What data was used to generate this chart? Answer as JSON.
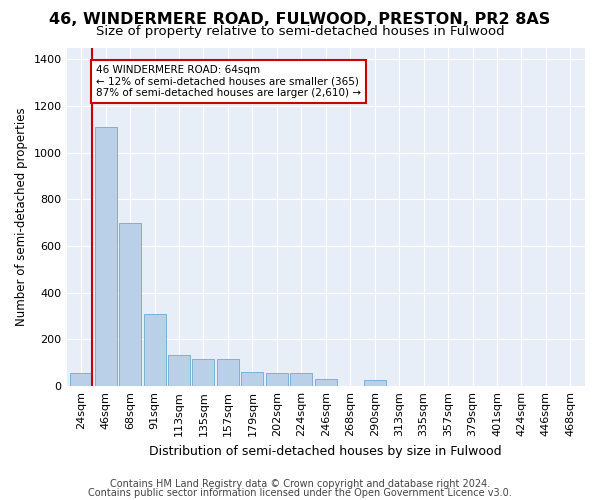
{
  "title_line1": "46, WINDERMERE ROAD, FULWOOD, PRESTON, PR2 8AS",
  "title_line2": "Size of property relative to semi-detached houses in Fulwood",
  "xlabel": "Distribution of semi-detached houses by size in Fulwood",
  "ylabel": "Number of semi-detached properties",
  "footnote1": "Contains HM Land Registry data © Crown copyright and database right 2024.",
  "footnote2": "Contains public sector information licensed under the Open Government Licence v3.0.",
  "bar_labels": [
    "24sqm",
    "46sqm",
    "68sqm",
    "91sqm",
    "113sqm",
    "135sqm",
    "157sqm",
    "179sqm",
    "202sqm",
    "224sqm",
    "246sqm",
    "268sqm",
    "290sqm",
    "313sqm",
    "335sqm",
    "357sqm",
    "379sqm",
    "401sqm",
    "424sqm",
    "446sqm",
    "468sqm"
  ],
  "bar_values": [
    58,
    1110,
    700,
    310,
    135,
    115,
    115,
    60,
    55,
    55,
    30,
    0,
    25,
    0,
    0,
    0,
    0,
    0,
    0,
    0,
    0
  ],
  "bar_color": "#bad0e8",
  "bar_edge_color": "#6aaad4",
  "vline_color": "#cc0000",
  "annotation_text": "46 WINDERMERE ROAD: 64sqm\n← 12% of semi-detached houses are smaller (365)\n87% of semi-detached houses are larger (2,610) →",
  "annotation_box_color": "#cc0000",
  "ylim": [
    0,
    1450
  ],
  "yticks": [
    0,
    200,
    400,
    600,
    800,
    1000,
    1200,
    1400
  ],
  "plot_bg_color": "#e8eef7",
  "title1_fontsize": 11.5,
  "title2_fontsize": 9.5,
  "xlabel_fontsize": 9,
  "ylabel_fontsize": 8.5,
  "tick_fontsize": 8,
  "footnote_fontsize": 7
}
